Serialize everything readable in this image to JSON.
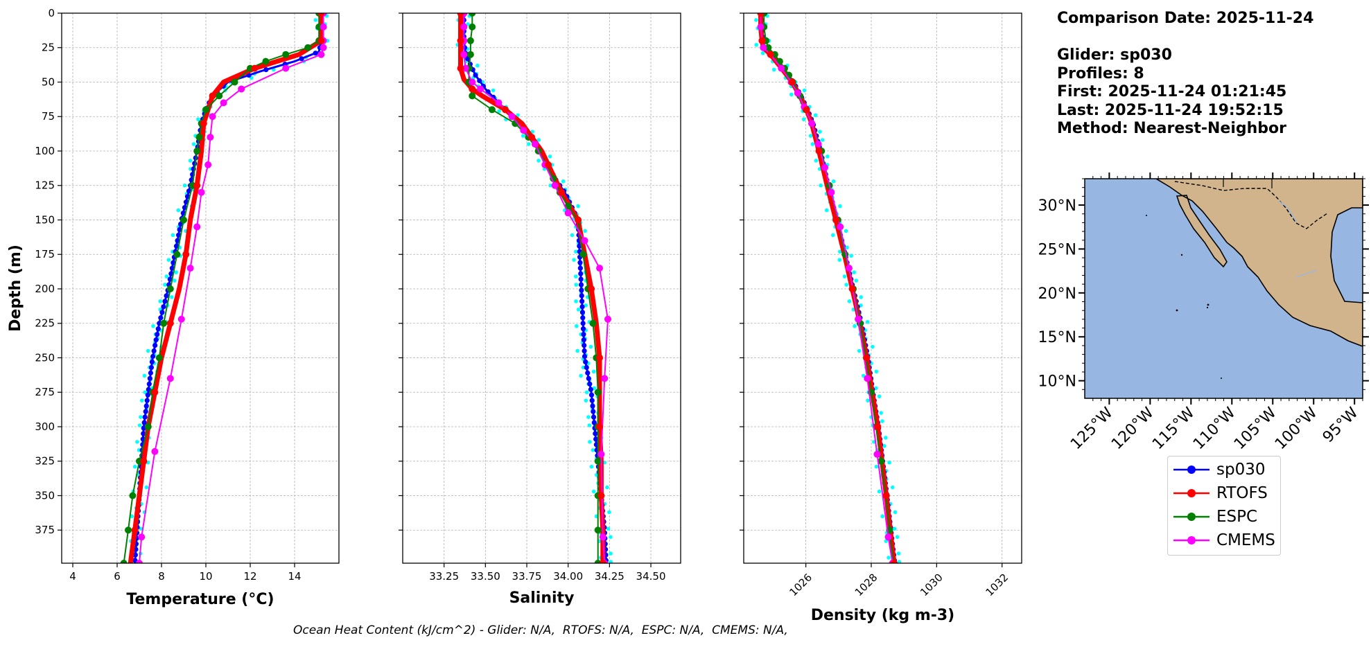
{
  "info": {
    "comparison_date": "Comparison Date: 2025-11-24",
    "glider": "Glider: sp030",
    "profiles": "Profiles: 8",
    "first": "First: 2025-11-24 01:21:45",
    "last": "Last: 2025-11-24 19:52:15",
    "method": "Method: Nearest-Neighbor"
  },
  "footer": "Ocean Heat Content (kJ/cm^2) - Glider: N/A,  RTOFS: N/A,  ESPC: N/A,  CMEMS: N/A,",
  "legend": [
    {
      "name": "sp030",
      "color": "#0000ff"
    },
    {
      "name": "RTOFS",
      "color": "#ff0000"
    },
    {
      "name": "ESPC",
      "color": "#008000"
    },
    {
      "name": "CMEMS",
      "color": "#ff00ff"
    }
  ],
  "chart_data": [
    {
      "type": "line",
      "xlabel": "Temperature (°C)",
      "ylabel": "Depth (m)",
      "xlim": [
        3.5,
        16.0
      ],
      "ylim": [
        399,
        0
      ],
      "xticks": [
        "4",
        "6",
        "8",
        "10",
        "12",
        "14"
      ],
      "yticks": [
        "0",
        "25",
        "50",
        "75",
        "100",
        "125",
        "150",
        "175",
        "200",
        "225",
        "250",
        "275",
        "300",
        "325",
        "350",
        "375"
      ],
      "grid": true,
      "series": [
        {
          "name": "sp030",
          "depth": [
            0,
            10,
            20,
            28,
            35,
            42,
            50,
            60,
            70,
            80,
            100,
            125,
            150,
            175,
            200,
            225,
            250,
            275,
            300,
            325,
            350,
            375,
            399
          ],
          "values": [
            15.2,
            15.2,
            15.2,
            15.1,
            14.0,
            12.5,
            11.0,
            10.3,
            10.0,
            9.8,
            9.6,
            9.3,
            8.9,
            8.6,
            8.3,
            7.9,
            7.6,
            7.4,
            7.2,
            7.1,
            7.0,
            6.9,
            6.8
          ]
        },
        {
          "name": "RTOFS",
          "depth": [
            0,
            10,
            20,
            30,
            40,
            50,
            60,
            70,
            80,
            100,
            125,
            150,
            175,
            200,
            225,
            250,
            275,
            300,
            325,
            350,
            375,
            399
          ],
          "values": [
            15.2,
            15.2,
            15.2,
            14.2,
            12.2,
            10.8,
            10.3,
            10.1,
            9.9,
            9.8,
            9.6,
            9.3,
            9.1,
            8.8,
            8.4,
            8.0,
            7.7,
            7.4,
            7.2,
            7.0,
            6.8,
            6.6
          ]
        },
        {
          "name": "ESPC",
          "depth": [
            0,
            10,
            20,
            25,
            30,
            35,
            40,
            50,
            60,
            70,
            80,
            90,
            100,
            125,
            150,
            175,
            200,
            225,
            250,
            275,
            300,
            325,
            350,
            375,
            399
          ],
          "values": [
            15.1,
            15.1,
            15.1,
            14.6,
            13.6,
            12.7,
            12.0,
            11.3,
            10.6,
            10.0,
            9.8,
            9.7,
            9.6,
            9.4,
            9.0,
            8.7,
            8.4,
            8.1,
            7.9,
            7.6,
            7.4,
            7.0,
            6.7,
            6.5,
            6.3
          ]
        },
        {
          "name": "CMEMS",
          "depth": [
            0,
            10,
            20,
            25,
            30,
            40,
            55,
            65,
            75,
            90,
            110,
            130,
            155,
            185,
            222,
            265,
            318,
            380,
            399
          ],
          "values": [
            15.3,
            15.3,
            15.3,
            15.3,
            15.2,
            13.6,
            11.6,
            10.8,
            10.3,
            10.2,
            10.1,
            9.8,
            9.6,
            9.3,
            8.9,
            8.4,
            7.7,
            7.1,
            7.0
          ]
        }
      ]
    },
    {
      "type": "line",
      "xlabel": "Salinity",
      "ylabel": "",
      "xlim": [
        33.0,
        34.68
      ],
      "ylim": [
        399,
        0
      ],
      "xticks": [
        "33.25",
        "33.50",
        "33.75",
        "34.00",
        "34.25",
        "34.50"
      ],
      "grid": true,
      "series": [
        {
          "name": "sp030",
          "depth": [
            0,
            10,
            20,
            30,
            40,
            45,
            50,
            55,
            60,
            70,
            80,
            90,
            100,
            110,
            120,
            125,
            130,
            140,
            150,
            175,
            200,
            225,
            250,
            275,
            300,
            325,
            350,
            375,
            399
          ],
          "values": [
            33.37,
            33.37,
            33.37,
            33.38,
            33.42,
            33.44,
            33.47,
            33.5,
            33.54,
            33.62,
            33.72,
            33.78,
            33.84,
            33.88,
            33.92,
            33.95,
            33.98,
            34.02,
            34.06,
            34.07,
            34.08,
            34.09,
            34.1,
            34.14,
            34.16,
            34.18,
            34.2,
            34.22,
            34.23
          ]
        },
        {
          "name": "RTOFS",
          "depth": [
            0,
            10,
            20,
            30,
            40,
            48,
            55,
            60,
            70,
            80,
            90,
            100,
            110,
            120,
            130,
            140,
            150,
            175,
            200,
            225,
            250,
            275,
            300,
            325,
            350,
            375,
            399
          ],
          "values": [
            33.35,
            33.35,
            33.35,
            33.35,
            33.35,
            33.37,
            33.42,
            33.48,
            33.62,
            33.72,
            33.78,
            33.84,
            33.88,
            33.92,
            33.96,
            34.01,
            34.06,
            34.1,
            34.14,
            34.17,
            34.19,
            34.19,
            34.19,
            34.2,
            34.2,
            34.21,
            34.21
          ]
        },
        {
          "name": "ESPC",
          "depth": [
            0,
            10,
            20,
            30,
            40,
            50,
            60,
            70,
            80,
            90,
            100,
            110,
            120,
            130,
            140,
            150,
            175,
            200,
            225,
            250,
            275,
            300,
            325,
            350,
            375,
            399
          ],
          "values": [
            33.42,
            33.42,
            33.41,
            33.41,
            33.4,
            33.4,
            33.42,
            33.54,
            33.68,
            33.76,
            33.82,
            33.87,
            33.91,
            33.95,
            34.0,
            34.06,
            34.09,
            34.12,
            34.15,
            34.17,
            34.18,
            34.18,
            34.18,
            34.18,
            34.18,
            34.18
          ]
        },
        {
          "name": "CMEMS",
          "depth": [
            0,
            10,
            20,
            30,
            40,
            50,
            55,
            65,
            75,
            85,
            95,
            110,
            125,
            145,
            165,
            185,
            222,
            265,
            320,
            380,
            399
          ],
          "values": [
            33.37,
            33.37,
            33.37,
            33.37,
            33.38,
            33.42,
            33.47,
            33.58,
            33.66,
            33.73,
            33.8,
            33.86,
            33.92,
            34.0,
            34.1,
            34.19,
            34.24,
            34.22,
            34.2,
            34.21,
            34.22
          ]
        }
      ]
    },
    {
      "type": "line",
      "xlabel": "Density (kg m-3)",
      "ylabel": "",
      "xlim": [
        1024.1,
        1032.6
      ],
      "ylim": [
        399,
        0
      ],
      "xticks": [
        "1026",
        "1028",
        "1030",
        "1032"
      ],
      "grid": true,
      "series": [
        {
          "name": "sp030",
          "depth": [
            0,
            10,
            20,
            25,
            30,
            40,
            50,
            60,
            70,
            80,
            100,
            125,
            150,
            175,
            200,
            225,
            250,
            275,
            300,
            325,
            350,
            375,
            399
          ],
          "values": [
            1024.65,
            1024.65,
            1024.68,
            1024.72,
            1024.95,
            1025.3,
            1025.62,
            1025.85,
            1026.05,
            1026.22,
            1026.45,
            1026.68,
            1026.95,
            1027.2,
            1027.45,
            1027.7,
            1027.9,
            1028.05,
            1028.22,
            1028.35,
            1028.48,
            1028.6,
            1028.72
          ]
        },
        {
          "name": "RTOFS",
          "depth": [
            0,
            10,
            20,
            25,
            30,
            40,
            50,
            60,
            70,
            80,
            100,
            125,
            150,
            175,
            200,
            225,
            250,
            275,
            300,
            325,
            350,
            375,
            399
          ],
          "values": [
            1024.62,
            1024.62,
            1024.66,
            1024.7,
            1024.92,
            1025.26,
            1025.58,
            1025.82,
            1026.02,
            1026.18,
            1026.4,
            1026.65,
            1026.92,
            1027.18,
            1027.42,
            1027.66,
            1027.86,
            1028.03,
            1028.2,
            1028.33,
            1028.46,
            1028.58,
            1028.7
          ]
        },
        {
          "name": "ESPC",
          "depth": [
            0,
            10,
            20,
            25,
            30,
            35,
            40,
            45,
            50,
            60,
            70,
            80,
            100,
            125,
            150,
            175,
            200,
            225,
            250,
            275,
            300,
            325,
            350,
            375,
            399
          ],
          "values": [
            1024.72,
            1024.72,
            1024.78,
            1024.85,
            1025.05,
            1025.2,
            1025.35,
            1025.48,
            1025.6,
            1025.82,
            1026.0,
            1026.18,
            1026.48,
            1026.72,
            1026.98,
            1027.2,
            1027.45,
            1027.66,
            1027.85,
            1028.0,
            1028.15,
            1028.3,
            1028.45,
            1028.56,
            1028.68
          ]
        },
        {
          "name": "CMEMS",
          "depth": [
            0,
            10,
            20,
            25,
            30,
            40,
            50,
            58,
            68,
            80,
            95,
            112,
            130,
            155,
            185,
            222,
            265,
            320,
            380,
            399
          ],
          "values": [
            1024.62,
            1024.62,
            1024.66,
            1024.7,
            1024.92,
            1025.25,
            1025.55,
            1025.75,
            1025.95,
            1026.18,
            1026.38,
            1026.58,
            1026.78,
            1027.05,
            1027.32,
            1027.6,
            1027.88,
            1028.18,
            1028.52,
            1028.65
          ]
        }
      ]
    },
    {
      "type": "map",
      "xticks": [
        "125°W",
        "120°W",
        "115°W",
        "110°W",
        "105°W",
        "100°W",
        "95°W"
      ],
      "yticks": [
        "30°N",
        "25°N",
        "20°N",
        "15°N",
        "10°N"
      ],
      "lon_range": [
        -128,
        -94
      ],
      "lat_range": [
        8,
        33
      ],
      "ocean_color": "#97b6e1",
      "land_color": "#d2b48c"
    }
  ]
}
